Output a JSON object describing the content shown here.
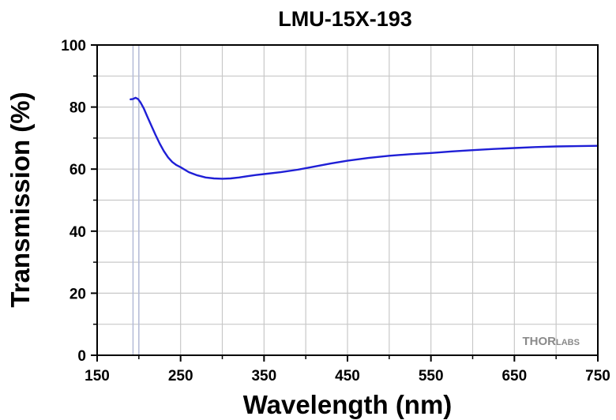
{
  "chart_data": {
    "type": "line",
    "title": "LMU-15X-193",
    "xlabel": "Wavelength (nm)",
    "ylabel": "Transmission (%)",
    "xlim": [
      150,
      750
    ],
    "ylim": [
      0,
      100
    ],
    "x_ticks": [
      150,
      250,
      350,
      450,
      550,
      650,
      750
    ],
    "y_ticks": [
      0,
      20,
      40,
      60,
      80,
      100
    ],
    "grid": true,
    "grid_color": "#c8c8c8",
    "highlight_lines": [
      193,
      200
    ],
    "highlight_line_color": "#b4bbd8",
    "logo": {
      "text_a": "THOR",
      "text_b": "LABS"
    },
    "series": [
      {
        "color": "#1f1fd6",
        "x": [
          190,
          193,
          196,
          199,
          202,
          206,
          210,
          215,
          220,
          225,
          230,
          235,
          240,
          245,
          250,
          260,
          270,
          280,
          290,
          300,
          310,
          320,
          330,
          340,
          350,
          370,
          390,
          410,
          430,
          450,
          475,
          500,
          525,
          550,
          575,
          600,
          625,
          650,
          675,
          700,
          725,
          750
        ],
        "y": [
          82.5,
          82.6,
          83.0,
          82.6,
          81.5,
          79.5,
          77.0,
          74.0,
          71.0,
          68.2,
          65.8,
          63.8,
          62.3,
          61.3,
          60.6,
          59.0,
          58.0,
          57.3,
          57.0,
          56.9,
          57.0,
          57.3,
          57.7,
          58.1,
          58.4,
          59.0,
          59.8,
          60.8,
          61.8,
          62.7,
          63.6,
          64.3,
          64.8,
          65.2,
          65.7,
          66.1,
          66.5,
          66.8,
          67.1,
          67.3,
          67.4,
          67.5
        ]
      }
    ]
  }
}
